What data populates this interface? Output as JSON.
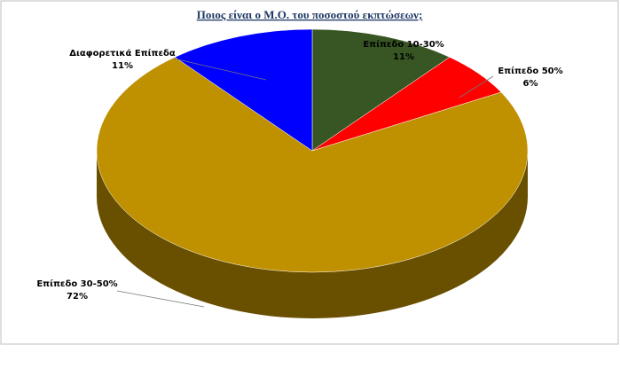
{
  "chart_data": {
    "type": "pie",
    "title": "Ποιος είναι ο Μ.Ο. του ποσοστού  εκπτώσεων;",
    "categories": [
      "Επίπεδο 10-30%",
      "Επίπεδο 50%",
      "Επίπεδο 30-50%",
      "Διαφορετικά Επίπεδα"
    ],
    "values": [
      11,
      6,
      72,
      11
    ],
    "value_labels": [
      "11%",
      "6%",
      "72%",
      "11%"
    ],
    "colors": [
      "#375623",
      "#ff0000",
      "#bf9000",
      "#0000ff"
    ]
  }
}
